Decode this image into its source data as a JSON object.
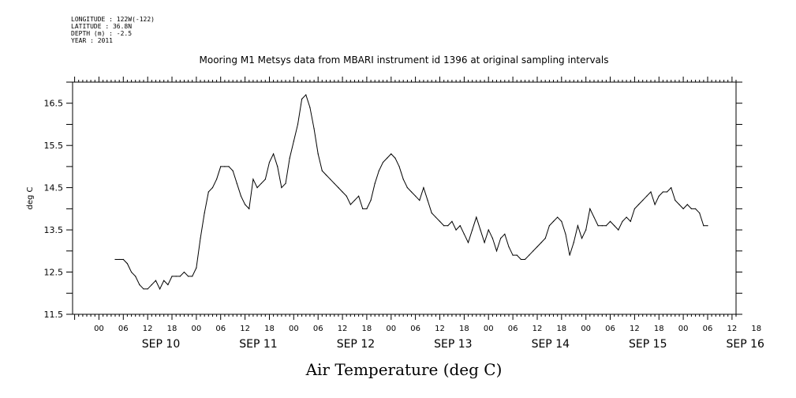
{
  "metadata": {
    "longitude": "LONGITUDE : 122W(-122)",
    "latitude": "LATITUDE : 36.8N",
    "depth": "DEPTH (m) : -2.5",
    "year": "YEAR : 2011"
  },
  "chart_data": {
    "type": "line",
    "title": "Mooring M1 Metsys data from MBARI instrument id 1396 at original sampling intervals",
    "xlabel": "Air Temperature (deg C)",
    "ylabel": "deg C",
    "ylim": [
      11.5,
      17.0
    ],
    "yticks": [
      "11.5",
      "12.5",
      "13.5",
      "14.5",
      "15.5",
      "16.5"
    ],
    "xlim_hours_from_sep10_00": [
      -12.5,
      151
    ],
    "hour_ticks": [
      "00",
      "06",
      "12",
      "18",
      "00",
      "06",
      "12",
      "18",
      "00",
      "06",
      "12",
      "18",
      "00",
      "06",
      "12",
      "18",
      "00",
      "06",
      "12",
      "18",
      "00",
      "06",
      "12",
      "18",
      "00",
      "06",
      "12",
      "18"
    ],
    "day_labels": [
      "SEP 10",
      "SEP 11",
      "SEP 12",
      "SEP 13",
      "SEP 14",
      "SEP 15",
      "SEP 16"
    ],
    "grid": false,
    "series": [
      {
        "color": "#000000",
        "points": [
          [
            "09-Sep 22:00",
            12.8
          ],
          [
            "09-Sep 23:00",
            12.8
          ],
          [
            "10-Sep 00:00",
            12.8
          ],
          [
            "10-Sep 01:00",
            12.7
          ],
          [
            "10-Sep 02:00",
            12.5
          ],
          [
            "10-Sep 03:00",
            12.4
          ],
          [
            "10-Sep 04:00",
            12.2
          ],
          [
            "10-Sep 05:00",
            12.1
          ],
          [
            "10-Sep 06:00",
            12.1
          ],
          [
            "10-Sep 07:00",
            12.2
          ],
          [
            "10-Sep 08:00",
            12.3
          ],
          [
            "10-Sep 09:00",
            12.1
          ],
          [
            "10-Sep 10:00",
            12.3
          ],
          [
            "10-Sep 11:00",
            12.2
          ],
          [
            "10-Sep 12:00",
            12.4
          ],
          [
            "10-Sep 13:00",
            12.4
          ],
          [
            "10-Sep 14:00",
            12.4
          ],
          [
            "10-Sep 15:00",
            12.5
          ],
          [
            "10-Sep 16:00",
            12.4
          ],
          [
            "10-Sep 17:00",
            12.4
          ],
          [
            "10-Sep 18:00",
            12.6
          ],
          [
            "10-Sep 19:00",
            13.3
          ],
          [
            "10-Sep 20:00",
            13.9
          ],
          [
            "10-Sep 21:00",
            14.4
          ],
          [
            "10-Sep 22:00",
            14.5
          ],
          [
            "10-Sep 23:00",
            14.7
          ],
          [
            "11-Sep 00:00",
            15.0
          ],
          [
            "11-Sep 01:00",
            15.0
          ],
          [
            "11-Sep 02:00",
            15.0
          ],
          [
            "11-Sep 03:00",
            14.9
          ],
          [
            "11-Sep 04:00",
            14.6
          ],
          [
            "11-Sep 05:00",
            14.3
          ],
          [
            "11-Sep 06:00",
            14.1
          ],
          [
            "11-Sep 07:00",
            14.0
          ],
          [
            "11-Sep 08:00",
            14.7
          ],
          [
            "11-Sep 09:00",
            14.5
          ],
          [
            "11-Sep 10:00",
            14.6
          ],
          [
            "11-Sep 11:00",
            14.7
          ],
          [
            "11-Sep 12:00",
            15.1
          ],
          [
            "11-Sep 13:00",
            15.3
          ],
          [
            "11-Sep 14:00",
            15.0
          ],
          [
            "11-Sep 15:00",
            14.5
          ],
          [
            "11-Sep 16:00",
            14.6
          ],
          [
            "11-Sep 17:00",
            15.2
          ],
          [
            "11-Sep 18:00",
            15.6
          ],
          [
            "11-Sep 19:00",
            16.0
          ],
          [
            "11-Sep 20:00",
            16.6
          ],
          [
            "11-Sep 21:00",
            16.7
          ],
          [
            "11-Sep 22:00",
            16.4
          ],
          [
            "11-Sep 23:00",
            15.9
          ],
          [
            "12-Sep 00:00",
            15.3
          ],
          [
            "12-Sep 01:00",
            14.9
          ],
          [
            "12-Sep 02:00",
            14.8
          ],
          [
            "12-Sep 03:00",
            14.7
          ],
          [
            "12-Sep 04:00",
            14.6
          ],
          [
            "12-Sep 05:00",
            14.5
          ],
          [
            "12-Sep 06:00",
            14.4
          ],
          [
            "12-Sep 07:00",
            14.3
          ],
          [
            "12-Sep 08:00",
            14.1
          ],
          [
            "12-Sep 09:00",
            14.2
          ],
          [
            "12-Sep 10:00",
            14.3
          ],
          [
            "12-Sep 11:00",
            14.0
          ],
          [
            "12-Sep 12:00",
            14.0
          ],
          [
            "12-Sep 13:00",
            14.2
          ],
          [
            "12-Sep 14:00",
            14.6
          ],
          [
            "12-Sep 15:00",
            14.9
          ],
          [
            "12-Sep 16:00",
            15.1
          ],
          [
            "12-Sep 17:00",
            15.2
          ],
          [
            "12-Sep 18:00",
            15.3
          ],
          [
            "12-Sep 19:00",
            15.2
          ],
          [
            "12-Sep 20:00",
            15.0
          ],
          [
            "12-Sep 21:00",
            14.7
          ],
          [
            "12-Sep 22:00",
            14.5
          ],
          [
            "12-Sep 23:00",
            14.4
          ],
          [
            "13-Sep 00:00",
            14.3
          ],
          [
            "13-Sep 01:00",
            14.2
          ],
          [
            "13-Sep 02:00",
            14.5
          ],
          [
            "13-Sep 03:00",
            14.2
          ],
          [
            "13-Sep 04:00",
            13.9
          ],
          [
            "13-Sep 05:00",
            13.8
          ],
          [
            "13-Sep 06:00",
            13.7
          ],
          [
            "13-Sep 07:00",
            13.6
          ],
          [
            "13-Sep 08:00",
            13.6
          ],
          [
            "13-Sep 09:00",
            13.7
          ],
          [
            "13-Sep 10:00",
            13.5
          ],
          [
            "13-Sep 11:00",
            13.6
          ],
          [
            "13-Sep 12:00",
            13.4
          ],
          [
            "13-Sep 13:00",
            13.2
          ],
          [
            "13-Sep 14:00",
            13.5
          ],
          [
            "13-Sep 15:00",
            13.8
          ],
          [
            "13-Sep 16:00",
            13.5
          ],
          [
            "13-Sep 17:00",
            13.2
          ],
          [
            "13-Sep 18:00",
            13.5
          ],
          [
            "13-Sep 19:00",
            13.3
          ],
          [
            "13-Sep 20:00",
            13.0
          ],
          [
            "13-Sep 21:00",
            13.3
          ],
          [
            "13-Sep 22:00",
            13.4
          ],
          [
            "13-Sep 23:00",
            13.1
          ],
          [
            "14-Sep 00:00",
            12.9
          ],
          [
            "14-Sep 01:00",
            12.9
          ],
          [
            "14-Sep 02:00",
            12.8
          ],
          [
            "14-Sep 03:00",
            12.8
          ],
          [
            "14-Sep 04:00",
            12.9
          ],
          [
            "14-Sep 05:00",
            13.0
          ],
          [
            "14-Sep 06:00",
            13.1
          ],
          [
            "14-Sep 07:00",
            13.2
          ],
          [
            "14-Sep 08:00",
            13.3
          ],
          [
            "14-Sep 09:00",
            13.6
          ],
          [
            "14-Sep 10:00",
            13.7
          ],
          [
            "14-Sep 11:00",
            13.8
          ],
          [
            "14-Sep 12:00",
            13.7
          ],
          [
            "14-Sep 13:00",
            13.4
          ],
          [
            "14-Sep 14:00",
            12.9
          ],
          [
            "14-Sep 15:00",
            13.2
          ],
          [
            "14-Sep 16:00",
            13.6
          ],
          [
            "14-Sep 17:00",
            13.3
          ],
          [
            "14-Sep 18:00",
            13.5
          ],
          [
            "14-Sep 19:00",
            14.0
          ],
          [
            "14-Sep 20:00",
            13.8
          ],
          [
            "14-Sep 21:00",
            13.6
          ],
          [
            "14-Sep 22:00",
            13.6
          ],
          [
            "14-Sep 23:00",
            13.6
          ],
          [
            "15-Sep 00:00",
            13.7
          ],
          [
            "15-Sep 01:00",
            13.6
          ],
          [
            "15-Sep 02:00",
            13.5
          ],
          [
            "15-Sep 03:00",
            13.7
          ],
          [
            "15-Sep 04:00",
            13.8
          ],
          [
            "15-Sep 05:00",
            13.7
          ],
          [
            "15-Sep 06:00",
            14.0
          ],
          [
            "15-Sep 07:00",
            14.1
          ],
          [
            "15-Sep 08:00",
            14.2
          ],
          [
            "15-Sep 09:00",
            14.3
          ],
          [
            "15-Sep 10:00",
            14.4
          ],
          [
            "15-Sep 11:00",
            14.1
          ],
          [
            "15-Sep 12:00",
            14.3
          ],
          [
            "15-Sep 13:00",
            14.4
          ],
          [
            "15-Sep 14:00",
            14.4
          ],
          [
            "15-Sep 15:00",
            14.5
          ],
          [
            "15-Sep 16:00",
            14.2
          ],
          [
            "15-Sep 17:00",
            14.1
          ],
          [
            "15-Sep 18:00",
            14.0
          ],
          [
            "15-Sep 19:00",
            14.1
          ],
          [
            "15-Sep 20:00",
            14.0
          ],
          [
            "15-Sep 21:00",
            14.0
          ],
          [
            "15-Sep 22:00",
            13.9
          ],
          [
            "15-Sep 23:00",
            13.6
          ],
          [
            "16-Sep 00:00",
            13.6
          ]
        ]
      }
    ]
  }
}
